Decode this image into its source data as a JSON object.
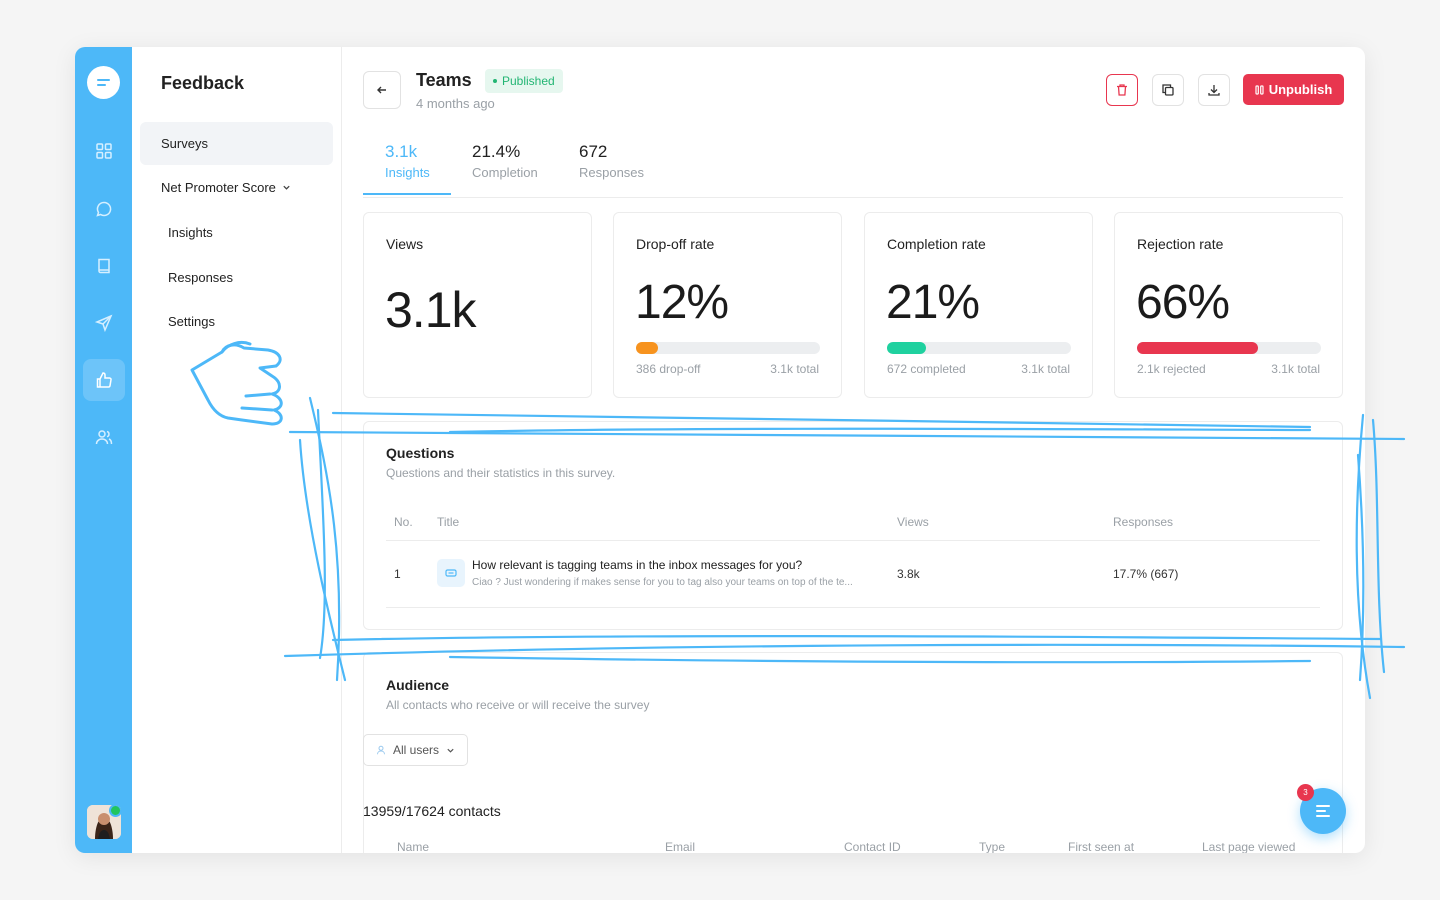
{
  "sidebar": {
    "title": "Feedback",
    "items": {
      "surveys": "Surveys",
      "nps": "Net Promoter Score",
      "insights": "Insights",
      "responses": "Responses",
      "settings": "Settings"
    }
  },
  "header": {
    "title": "Teams",
    "badge": "Published",
    "subtitle": "4 months ago",
    "unpublish_label": "Unpublish"
  },
  "tabs": [
    {
      "value": "3.1k",
      "label": "Insights"
    },
    {
      "value": "21.4%",
      "label": "Completion"
    },
    {
      "value": "672",
      "label": "Responses"
    }
  ],
  "cards": [
    {
      "title": "Views",
      "value": "3.1k"
    },
    {
      "title": "Drop-off rate",
      "value": "12%",
      "left": "386 drop-off",
      "right": "3.1k total",
      "progress": 0.12,
      "color": "#f7931e"
    },
    {
      "title": "Completion rate",
      "value": "21%",
      "left": "672 completed",
      "right": "3.1k total",
      "progress": 0.21,
      "color": "#1fd19f"
    },
    {
      "title": "Rejection rate",
      "value": "66%",
      "left": "2.1k rejected",
      "right": "3.1k total",
      "progress": 0.66,
      "color": "#e8364f"
    }
  ],
  "questions": {
    "title": "Questions",
    "subtitle": "Questions and their statistics in this survey.",
    "headers": {
      "no": "No.",
      "title": "Title",
      "views": "Views",
      "responses": "Responses"
    },
    "rows": [
      {
        "no": "1",
        "title": "How relevant is tagging teams in the inbox messages for you?",
        "desc": "Ciao ? Just wondering if makes sense for you to tag also your teams on top of the te...",
        "views": "3.8k",
        "responses": "17.7% (667)"
      }
    ]
  },
  "audience": {
    "title": "Audience",
    "subtitle": "All contacts who receive or will receive the survey",
    "filter": "All users",
    "contacts_count": "13959/17624 contacts",
    "columns": [
      "Name",
      "Email",
      "Contact ID",
      "Type",
      "First seen at",
      "Last page viewed"
    ]
  },
  "chat": {
    "badge": "3"
  },
  "colors": {
    "accent": "#4db8f8",
    "danger": "#e8364f",
    "annotation": "#4db8f8"
  },
  "icons": {
    "rail": [
      "chat-logo-icon",
      "dashboard-icon",
      "message-icon",
      "book-icon",
      "send-icon",
      "thumbs-up-icon",
      "users-icon"
    ],
    "actions": [
      "trash-icon",
      "copy-icon",
      "download-icon"
    ]
  }
}
